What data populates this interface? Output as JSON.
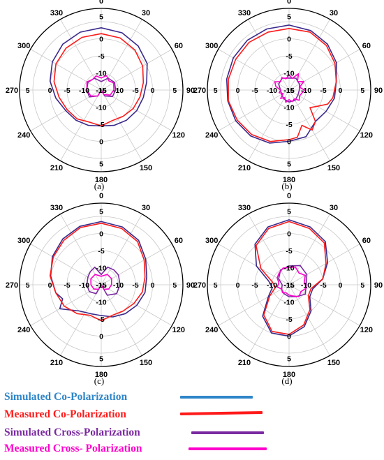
{
  "chart_data": [
    {
      "type": "polar-line",
      "panel_label": "(a)",
      "angle_labels": [
        "0",
        "30",
        "60",
        "90",
        "120",
        "150",
        "180",
        "210",
        "240",
        "270",
        "300",
        "330"
      ],
      "radial_labels": [
        "5",
        "0",
        "-5",
        "-10",
        "-15"
      ],
      "radial_range_db": [
        -15,
        5
      ],
      "series": [
        {
          "name": "Simulated Co-Polarization",
          "color": "#3a2a8c",
          "angles": [
            0,
            20,
            40,
            60,
            80,
            100,
            120,
            140,
            160,
            180,
            200,
            220,
            240,
            260,
            280,
            300,
            320,
            340
          ],
          "values": [
            3.2,
            2.8,
            1.8,
            0.5,
            -1.5,
            -2.5,
            -3,
            -3.5,
            -4,
            -4.5,
            -4,
            -3.5,
            -3,
            -1.5,
            0.2,
            1.5,
            2.5,
            3
          ]
        },
        {
          "name": "Measured Co-Polarization",
          "color": "#ff1a1a",
          "angles": [
            0,
            20,
            40,
            60,
            80,
            100,
            120,
            140,
            160,
            180,
            200,
            220,
            240,
            260,
            280,
            300,
            320,
            340
          ],
          "values": [
            1.5,
            1.2,
            0.3,
            -1,
            -2.5,
            -3.5,
            -4.2,
            -5,
            -5.5,
            -4.5,
            -5,
            -4,
            -3.5,
            -2.5,
            -1,
            0.3,
            1,
            1.4
          ]
        },
        {
          "name": "Simulated Cross-Polarization",
          "color": "#7a2aa0",
          "angles": [
            0,
            30,
            60,
            90,
            120,
            150,
            180,
            210,
            240,
            270,
            300,
            330
          ],
          "values": [
            -12.5,
            -11,
            -10.5,
            -10.8,
            -11.2,
            -13,
            -15,
            -13,
            -11,
            -10.8,
            -10.5,
            -11
          ]
        },
        {
          "name": "Measured Cross-Polarization",
          "color": "#ff00cc",
          "angles": [
            0,
            20,
            40,
            60,
            90,
            120,
            150,
            180,
            210,
            240,
            270,
            300,
            320,
            340
          ],
          "values": [
            -11.5,
            -10.5,
            -11.5,
            -10.8,
            -11.3,
            -12,
            -13.5,
            -15,
            -13,
            -11.5,
            -10.8,
            -10.2,
            -11,
            -10.6
          ]
        }
      ]
    },
    {
      "type": "polar-line",
      "panel_label": "(b)",
      "angle_labels": [
        "0",
        "30",
        "60",
        "90",
        "120",
        "150",
        "180",
        "210",
        "240",
        "270",
        "300",
        "330"
      ],
      "radial_labels": [
        "5",
        "0",
        "-5",
        "-10",
        "-15"
      ],
      "radial_range_db": [
        -15,
        5
      ],
      "series": [
        {
          "name": "Simulated Co-Polarization",
          "color": "#3a2a8c",
          "angles": [
            0,
            20,
            40,
            60,
            80,
            100,
            120,
            140,
            160,
            180,
            200,
            220,
            240,
            260,
            280,
            300,
            320,
            340
          ],
          "values": [
            4,
            3.5,
            2.5,
            1,
            -1,
            -1.5,
            -2.5,
            -3,
            -0.5,
            0,
            1.5,
            2.5,
            3,
            3.2,
            3.5,
            3.8,
            4,
            4
          ]
        },
        {
          "name": "Measured Co-Polarization",
          "color": "#ff1a1a",
          "angles": [
            0,
            20,
            40,
            60,
            80,
            100,
            110,
            120,
            130,
            140,
            150,
            160,
            170,
            180,
            200,
            220,
            240,
            260,
            280,
            300,
            320,
            340
          ],
          "values": [
            3,
            3,
            2,
            0.5,
            -1,
            -2,
            -3,
            -5.5,
            -7,
            -3,
            -1.5,
            -4,
            -1,
            -0.5,
            1,
            2,
            2.5,
            3,
            3,
            3,
            3.2,
            3
          ]
        },
        {
          "name": "Simulated Cross-Polarization",
          "color": "#7a2aa0",
          "angles": [
            0,
            30,
            60,
            90,
            120,
            150,
            180,
            210,
            240,
            270,
            300,
            330
          ],
          "values": [
            -11.5,
            -11,
            -11.5,
            -12,
            -12,
            -11.5,
            -11.5,
            -12,
            -12.5,
            -12.5,
            -11.5,
            -11
          ]
        },
        {
          "name": "Measured Cross-Polarization",
          "color": "#ff00cc",
          "angles": [
            0,
            15,
            30,
            45,
            60,
            75,
            90,
            105,
            120,
            135,
            150,
            165,
            180,
            195,
            210,
            225,
            240,
            255,
            270,
            285,
            300,
            315,
            330,
            345
          ],
          "values": [
            -10.5,
            -11.5,
            -9.5,
            -11.5,
            -10,
            -11.8,
            -10.5,
            -11.2,
            -11.5,
            -10.8,
            -12,
            -11.5,
            -12.2,
            -11.3,
            -12.5,
            -11.5,
            -13,
            -12,
            -12.5,
            -11,
            -10.2,
            -11.5,
            -10.8,
            -11.6
          ]
        }
      ]
    },
    {
      "type": "polar-line",
      "panel_label": "(c)",
      "angle_labels": [
        "0",
        "30",
        "60",
        "90",
        "120",
        "150",
        "180",
        "210",
        "240",
        "270",
        "300",
        "330"
      ],
      "radial_labels": [
        "5",
        "0",
        "-5",
        "-10",
        "-15"
      ],
      "radial_range_db": [
        -15,
        5
      ],
      "series": [
        {
          "name": "Simulated Co-Polarization",
          "color": "#3a2a8c",
          "angles": [
            0,
            20,
            40,
            60,
            80,
            100,
            120,
            140,
            160,
            180,
            200,
            220,
            240,
            250,
            260,
            280,
            300,
            320,
            340
          ],
          "values": [
            3.5,
            3,
            2,
            0,
            -1.5,
            -2,
            -3,
            -4,
            -5,
            -6,
            -6,
            -5,
            -1,
            -3,
            -1.5,
            0,
            1.5,
            2.5,
            3.2
          ]
        },
        {
          "name": "Measured Co-Polarization",
          "color": "#ff1a1a",
          "angles": [
            0,
            20,
            40,
            60,
            80,
            100,
            120,
            140,
            160,
            180,
            200,
            220,
            240,
            260,
            280,
            300,
            320,
            340
          ],
          "values": [
            3,
            2.5,
            1.5,
            -0.5,
            -2,
            -2.8,
            -4,
            -5,
            -5.5,
            -4.5,
            -5.5,
            -4,
            -2.5,
            -1.5,
            0.2,
            1.2,
            2,
            2.8
          ]
        },
        {
          "name": "Simulated Cross-Polarization",
          "color": "#7a2aa0",
          "angles": [
            0,
            20,
            40,
            60,
            90,
            120,
            150,
            180,
            210,
            240,
            270,
            300,
            320,
            340
          ],
          "values": [
            -12,
            -9.5,
            -9.3,
            -9.2,
            -9.5,
            -9.8,
            -11.5,
            -15,
            -12,
            -11,
            -10.8,
            -10.5,
            -10,
            -9.5
          ]
        },
        {
          "name": "Measured Cross-Polarization",
          "color": "#ff00cc",
          "angles": [
            0,
            30,
            60,
            90,
            120,
            150,
            180,
            210,
            240,
            270,
            300,
            330
          ],
          "values": [
            -12.5,
            -11.5,
            -11.5,
            -12,
            -12.5,
            -13.5,
            -15,
            -13.5,
            -12.5,
            -12,
            -11.5,
            -11.5
          ]
        }
      ]
    },
    {
      "type": "polar-line",
      "panel_label": "(d)",
      "angle_labels": [
        "0",
        "30",
        "60",
        "90",
        "120",
        "150",
        "180",
        "210",
        "240",
        "270",
        "300",
        "330"
      ],
      "radial_labels": [
        "5",
        "0",
        "-5",
        "-10",
        "-15"
      ],
      "radial_range_db": [
        -15,
        5
      ],
      "series": [
        {
          "name": "Simulated Co-Polarization",
          "color": "#3a2a8c",
          "angles": [
            0,
            20,
            40,
            60,
            80,
            100,
            120,
            140,
            160,
            180,
            200,
            220,
            240,
            260,
            280,
            300,
            320,
            340
          ],
          "values": [
            4,
            3,
            1.5,
            -2,
            -5,
            -8,
            -8,
            -5,
            -2,
            0,
            0,
            -3,
            -8,
            -10,
            -9,
            -4,
            0.5,
            3
          ]
        },
        {
          "name": "Measured Co-Polarization",
          "color": "#ff1a1a",
          "angles": [
            0,
            20,
            40,
            60,
            80,
            100,
            120,
            140,
            160,
            180,
            200,
            220,
            240,
            260,
            280,
            300,
            320,
            340
          ],
          "values": [
            3.5,
            2.5,
            1,
            -2.5,
            -5,
            -8.5,
            -8.5,
            -5.5,
            -2.5,
            -0.5,
            -0.5,
            -3.5,
            -8.5,
            -11,
            -10,
            -5.5,
            0,
            2.5
          ]
        },
        {
          "name": "Simulated Cross-Polarization",
          "color": "#7a2aa0",
          "angles": [
            0,
            30,
            60,
            90,
            120,
            150,
            180,
            210,
            240,
            270,
            300,
            330
          ],
          "values": [
            -9.5,
            -8.5,
            -9,
            -10,
            -9.5,
            -11,
            -11.5,
            -12,
            -12.5,
            -13,
            -11.5,
            -10
          ]
        },
        {
          "name": "Measured Cross-Polarization",
          "color": "#ff00cc",
          "angles": [
            0,
            20,
            40,
            60,
            80,
            100,
            120,
            140,
            160,
            180,
            200,
            220,
            240,
            260,
            280,
            300,
            320,
            340
          ],
          "values": [
            -10,
            -9.5,
            -10.5,
            -9.5,
            -10.5,
            -9.8,
            -11,
            -10.5,
            -11.5,
            -12,
            -12.5,
            -12,
            -12.5,
            -11.5,
            -12,
            -11,
            -10.5,
            -9.8
          ]
        }
      ]
    }
  ],
  "legend": {
    "items": [
      {
        "label": "Simulated Co-Polarization",
        "text_color": "#2e86c8",
        "line_color": "#2e86c8"
      },
      {
        "label": "Measured Co-Polarization",
        "text_color": "#ff1a1a",
        "line_color": "#ff1a1a"
      },
      {
        "label": "Simulated Cross-Polarization",
        "text_color": "#7a2aa0",
        "line_color": "#7a2aa0"
      },
      {
        "label": "Measured Cross- Polarization",
        "text_color": "#ff00cc",
        "line_color": "#ff00cc"
      }
    ]
  }
}
